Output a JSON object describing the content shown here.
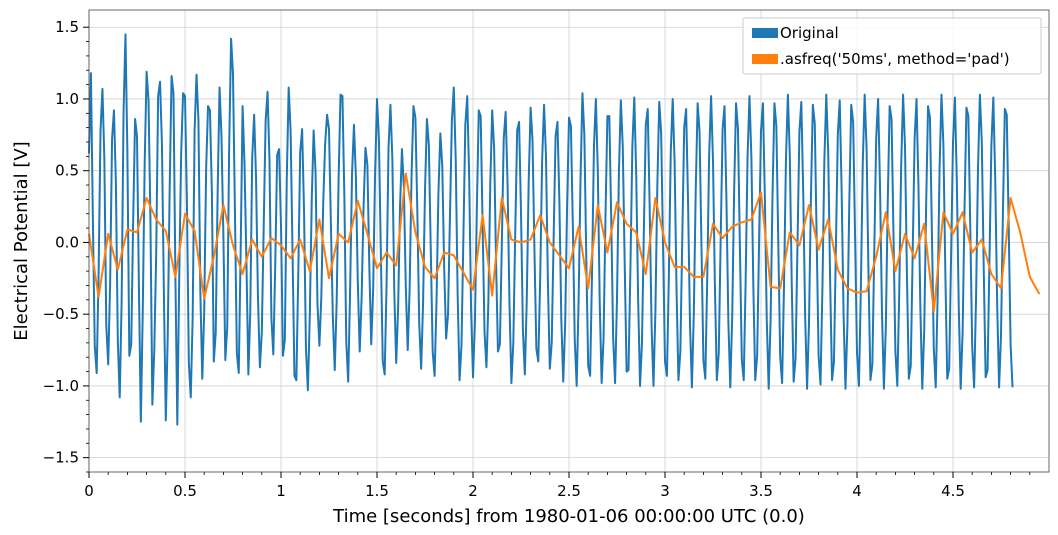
{
  "chart_data": {
    "type": "line",
    "xlabel": "Time [seconds] from 1980-01-06 00:00:00 UTC (0.0)",
    "ylabel": "Electrical Potential [V]",
    "xlim": [
      0,
      5.0
    ],
    "ylim": [
      -1.6,
      1.62
    ],
    "x_ticks": [
      0,
      0.5,
      1,
      1.5,
      2,
      2.5,
      3,
      3.5,
      4,
      4.5
    ],
    "x_tick_labels": [
      "0",
      "0.5",
      "1",
      "1.5",
      "2",
      "2.5",
      "3",
      "3.5",
      "4",
      "4.5"
    ],
    "y_ticks": [
      -1.5,
      -1.0,
      -0.5,
      0.0,
      0.5,
      1.0,
      1.5
    ],
    "y_tick_labels": [
      "−1.5",
      "−1.0",
      "−0.5",
      "0.0",
      "0.5",
      "1.0",
      "1.5"
    ],
    "grid": true,
    "legend_position": "top-right",
    "series": [
      {
        "name": "Original",
        "color": "#1f77b4",
        "x_start": 0.0,
        "x_step": 0.01,
        "values": [
          0.62,
          1.18,
          0.18,
          -0.72,
          -0.91,
          -0.22,
          0.78,
          1.07,
          0.58,
          -0.58,
          -0.85,
          -0.29,
          0.72,
          0.92,
          0.42,
          -0.68,
          -1.08,
          -0.41,
          0.91,
          1.45,
          0.62,
          -0.79,
          -0.71,
          0.15,
          0.86,
          0.74,
          -0.31,
          -1.25,
          -0.48,
          0.55,
          1.19,
          0.99,
          0.15,
          -1.13,
          -0.75,
          -0.08,
          1.02,
          1.12,
          0.68,
          -0.35,
          -1.24,
          -0.66,
          0.36,
          1.16,
          1.04,
          -0.24,
          -1.27,
          -0.24,
          0.62,
          1.04,
          1.02,
          0.28,
          -0.84,
          -1.08,
          -0.52,
          0.78,
          1.17,
          0.85,
          -0.35,
          -0.95,
          -0.48,
          0.51,
          0.95,
          0.92,
          0.35,
          -0.83,
          -0.63,
          0.35,
          1.08,
          0.74,
          0.04,
          -0.82,
          -0.59,
          0.66,
          1.42,
          1.17,
          0.22,
          -0.77,
          -0.91,
          -0.05,
          0.95,
          0.54,
          -0.14,
          -0.92,
          -0.48,
          0.59,
          0.89,
          0.45,
          -0.38,
          -0.87,
          -0.63,
          0.12,
          0.85,
          1.05,
          0.57,
          -0.53,
          -0.78,
          -0.16,
          0.61,
          0.65,
          0.12,
          -0.79,
          -0.68,
          0.44,
          1.08,
          0.78,
          -0.06,
          -0.93,
          -0.96,
          -0.22,
          0.63,
          0.79,
          0.22,
          -0.74,
          -1.03,
          -0.51,
          0.29,
          0.78,
          0.49,
          -0.43,
          -0.72,
          -0.38,
          0.28,
          0.69,
          0.89,
          0.79,
          0.12,
          -0.52,
          -0.89,
          -0.41,
          0.44,
          1.03,
          1.02,
          0.32,
          -0.7,
          -0.97,
          -0.33,
          0.48,
          0.82,
          0.46,
          -0.28,
          -0.76,
          -0.38,
          0.25,
          0.66,
          0.54,
          -0.17,
          -0.71,
          -0.33,
          0.48,
          1.0,
          0.72,
          -0.07,
          -0.83,
          -0.92,
          -0.28,
          0.66,
          0.96,
          0.58,
          -0.34,
          -0.84,
          -0.46,
          0.25,
          0.65,
          0.38,
          -0.31,
          -0.75,
          -0.32,
          0.47,
          0.95,
          0.87,
          0.22,
          -0.57,
          -0.88,
          -0.42,
          0.36,
          0.86,
          0.68,
          -0.05,
          -0.76,
          -0.93,
          -0.41,
          0.35,
          0.76,
          0.53,
          -0.18,
          -0.67,
          -0.5,
          0.18,
          0.85,
          1.08,
          0.58,
          -0.36,
          -0.96,
          -0.72,
          0.04,
          0.82,
          1.02,
          0.46,
          -0.46,
          -0.94,
          -0.56,
          0.23,
          0.92,
          0.88,
          0.12,
          -0.62,
          -0.87,
          -0.42,
          0.41,
          0.92,
          0.66,
          -0.13,
          -0.76,
          -0.71,
          -0.02,
          0.72,
          0.91,
          0.41,
          -0.43,
          -0.98,
          -0.7,
          0.07,
          0.78,
          0.84,
          0.21,
          -0.61,
          -0.92,
          -0.4,
          0.42,
          0.94,
          0.71,
          -0.05,
          -0.74,
          -0.83,
          -0.25,
          0.57,
          0.96,
          0.61,
          -0.27,
          -0.88,
          -0.7,
          0.03,
          0.74,
          0.84,
          0.28,
          -0.54,
          -0.97,
          -0.57,
          0.25,
          0.87,
          0.81,
          0.11,
          -0.68,
          -1.0,
          -0.41,
          0.44,
          1.04,
          0.75,
          -0.11,
          -0.86,
          -0.93,
          -0.21,
          0.67,
          1.0,
          0.5,
          -0.42,
          -0.98,
          -0.67,
          0.18,
          0.88,
          0.88,
          0.16,
          -0.67,
          -0.98,
          -0.39,
          0.49,
          0.99,
          0.67,
          -0.14,
          -0.9,
          -0.89,
          -0.17,
          0.67,
          1.01,
          0.48,
          -0.39,
          -1.0,
          -0.7,
          0.09,
          0.82,
          0.93,
          0.26,
          -0.58,
          -1.0,
          -0.48,
          0.39,
          0.98,
          0.76,
          -0.04,
          -0.83,
          -0.93,
          -0.24,
          0.63,
          1.0,
          0.56,
          -0.32,
          -0.96,
          -0.76,
          0.03,
          0.8,
          0.93,
          0.29,
          -0.56,
          -1.01,
          -0.5,
          0.36,
          0.97,
          0.77,
          -0.03,
          -0.82,
          -0.95,
          -0.25,
          0.61,
          1.02,
          0.57,
          -0.31,
          -0.96,
          -0.77,
          0.02,
          0.79,
          0.95,
          0.3,
          -0.55,
          -1.01,
          -0.52,
          0.35,
          0.97,
          0.79,
          -0.02,
          -0.82,
          -0.96,
          -0.27,
          0.6,
          1.02,
          0.59,
          -0.3,
          -0.96,
          -0.79,
          0.0,
          0.78,
          0.97,
          0.32,
          -0.54,
          -1.02,
          -0.54,
          0.33,
          0.97,
          0.81,
          0.0,
          -0.8,
          -0.98,
          -0.29,
          0.58,
          1.03,
          0.61,
          -0.28,
          -0.97,
          -0.81,
          -0.02,
          0.77,
          0.98,
          0.34,
          -0.52,
          -1.02,
          -0.56,
          0.31,
          0.96,
          0.83,
          0.02,
          -0.79,
          -0.99,
          -0.31,
          0.57,
          1.03,
          0.63,
          -0.26,
          -0.96,
          -0.83,
          -0.04,
          0.75,
          0.99,
          0.36,
          -0.5,
          -1.02,
          -0.58,
          0.29,
          0.96,
          0.84,
          0.04,
          -0.77,
          -1.0,
          -0.33,
          0.55,
          1.03,
          0.65,
          -0.24,
          -0.96,
          -0.85,
          -0.06,
          0.73,
          1.0,
          0.38,
          -0.48,
          -1.02,
          -0.6,
          0.27,
          0.95,
          0.86,
          0.06,
          -0.76,
          -1.0,
          -0.35,
          0.53,
          1.03,
          0.67,
          -0.22,
          -0.95,
          -0.86,
          -0.08,
          0.72,
          1.0,
          0.4,
          -0.46,
          -1.02,
          -0.62,
          0.25,
          0.95,
          0.87,
          0.08,
          -0.74,
          -1.01,
          -0.37,
          0.51,
          1.03,
          0.68,
          -0.2,
          -0.95,
          -0.88,
          -0.1,
          0.7,
          1.01,
          0.42,
          -0.45,
          -1.02,
          -0.63,
          0.23,
          0.94,
          0.88,
          0.1,
          -0.73,
          -1.01,
          -0.39,
          0.5,
          1.03,
          0.7,
          -0.18,
          -0.94,
          -0.89,
          -0.12,
          0.68,
          1.01,
          0.44,
          -0.43,
          -1.01,
          -0.65,
          0.21,
          0.93,
          0.89,
          0.12,
          -0.71,
          -1.01
        ]
      },
      {
        "name": ".asfreq('50ms', method='pad')",
        "color": "#ff7f0e",
        "x_start": 0.0,
        "x_step": 0.05,
        "values": [
          0.06,
          -0.38,
          0.06,
          -0.19,
          0.09,
          0.07,
          0.31,
          0.16,
          0.08,
          -0.24,
          0.2,
          0.08,
          -0.39,
          -0.1,
          0.26,
          -0.02,
          -0.22,
          0.02,
          -0.1,
          0.03,
          -0.02,
          -0.11,
          0.02,
          -0.2,
          0.16,
          -0.25,
          0.06,
          0.0,
          0.29,
          0.06,
          -0.18,
          -0.07,
          -0.16,
          0.48,
          0.07,
          -0.17,
          -0.25,
          -0.07,
          -0.09,
          -0.21,
          -0.33,
          0.19,
          -0.37,
          0.31,
          0.02,
          0.0,
          0.02,
          0.19,
          0.0,
          -0.09,
          -0.18,
          0.11,
          -0.32,
          0.26,
          -0.07,
          0.28,
          0.13,
          0.07,
          -0.22,
          0.31,
          0.0,
          -0.17,
          -0.17,
          -0.24,
          -0.24,
          0.13,
          0.03,
          0.11,
          0.14,
          0.16,
          0.35,
          -0.31,
          -0.32,
          0.07,
          -0.02,
          0.26,
          -0.05,
          0.16,
          -0.19,
          -0.32,
          -0.35,
          -0.34,
          -0.1,
          0.21,
          -0.2,
          0.06,
          -0.11,
          0.13,
          -0.48,
          0.21,
          0.06,
          0.21,
          -0.07,
          0.02,
          -0.22,
          -0.32,
          0.31,
          0.07,
          -0.24,
          -0.36
        ]
      }
    ]
  }
}
